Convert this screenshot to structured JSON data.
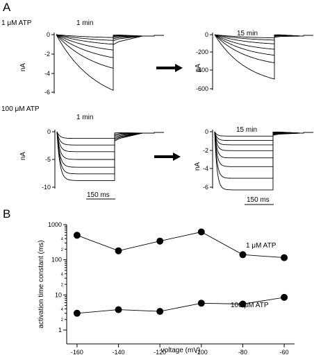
{
  "panel_a": {
    "letter": "A",
    "row1_condition": "1 μM ATP",
    "row2_condition": "100 μM ATP",
    "scale_bar_label": "150 ms",
    "recordings": [
      {
        "id": "r1l",
        "time_label": "1 min",
        "units": "nA",
        "ticks": [
          "0",
          "-2",
          "-4",
          "-6"
        ],
        "steady": [
          -0.3,
          -0.6,
          -1.0,
          -1.6,
          -2.4,
          -3.5,
          -5.8
        ],
        "rise": 0.7
      },
      {
        "id": "r1r",
        "time_label": "15 min",
        "units": "pA",
        "ticks": [
          "0",
          "-200",
          "-400",
          "-600"
        ],
        "steady": [
          -0.06,
          -0.1,
          -0.17,
          -0.27,
          -0.38,
          -0.52,
          -0.82
        ],
        "rise": 0.55
      },
      {
        "id": "r2l",
        "time_label": "1 min",
        "units": "nA",
        "ticks": [
          "0",
          "-5",
          "-10"
        ],
        "steady": [
          -0.12,
          -0.24,
          -0.36,
          -0.5,
          -0.64,
          -0.76,
          -0.88
        ],
        "rise": 0.05
      },
      {
        "id": "r2r",
        "time_label": "15 min",
        "units": "nA",
        "ticks": [
          "0",
          "-2",
          "-4",
          "-6"
        ],
        "steady": [
          -0.06,
          -0.12,
          -0.18,
          -0.26,
          -0.36,
          -0.48,
          -0.64,
          -0.8
        ],
        "rise": 0.04
      }
    ]
  },
  "panel_b": {
    "letter": "B",
    "chart_data": {
      "type": "scatter",
      "x": [
        -160,
        -140,
        -120,
        -100,
        -80,
        -60
      ],
      "series": [
        {
          "name": "1 μM ATP",
          "values": [
            500,
            180,
            340,
            620,
            140,
            115
          ]
        },
        {
          "name": "100 μM ATP",
          "values": [
            3,
            3.8,
            3.4,
            5.8,
            5.5,
            8.5
          ]
        }
      ],
      "xlabel": "voltage (mV)",
      "ylabel": "activation time constant (ms)",
      "xlim": [
        -165,
        -55
      ],
      "ylim": [
        1,
        1000
      ],
      "yscale": "log",
      "xticks": [
        "-160",
        "-140",
        "-120",
        "-100",
        "-80",
        "-60"
      ],
      "yticks": [
        "1",
        "10",
        "100",
        "1000"
      ],
      "minor_tick_labels": [
        "2",
        "4",
        "2",
        "4",
        "2",
        "4"
      ]
    }
  }
}
